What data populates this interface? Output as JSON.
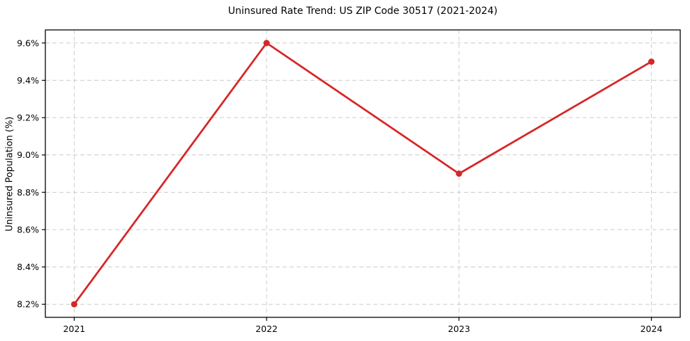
{
  "chart_data": {
    "type": "line",
    "title": "Uninsured Rate Trend: US ZIP Code 30517 (2021-2024)",
    "xlabel": "",
    "ylabel": "Uninsured Population (%)",
    "x": [
      2021,
      2022,
      2023,
      2024
    ],
    "x_tick_labels": [
      "2021",
      "2022",
      "2023",
      "2024"
    ],
    "series": [
      {
        "name": "Uninsured Rate",
        "values": [
          8.2,
          9.6,
          8.9,
          9.5
        ]
      }
    ],
    "y_ticks": [
      8.2,
      8.4,
      8.6,
      8.8,
      9.0,
      9.2,
      9.4,
      9.6
    ],
    "y_tick_suffix": "%",
    "xlim": [
      2020.85,
      2024.15
    ],
    "ylim": [
      8.13,
      9.67
    ],
    "grid": true,
    "grid_style": "dashed",
    "legend": "none",
    "line_color": "#d62728",
    "marker": "circle",
    "grid_color": "#cccccc",
    "background_color": "#ffffff"
  }
}
